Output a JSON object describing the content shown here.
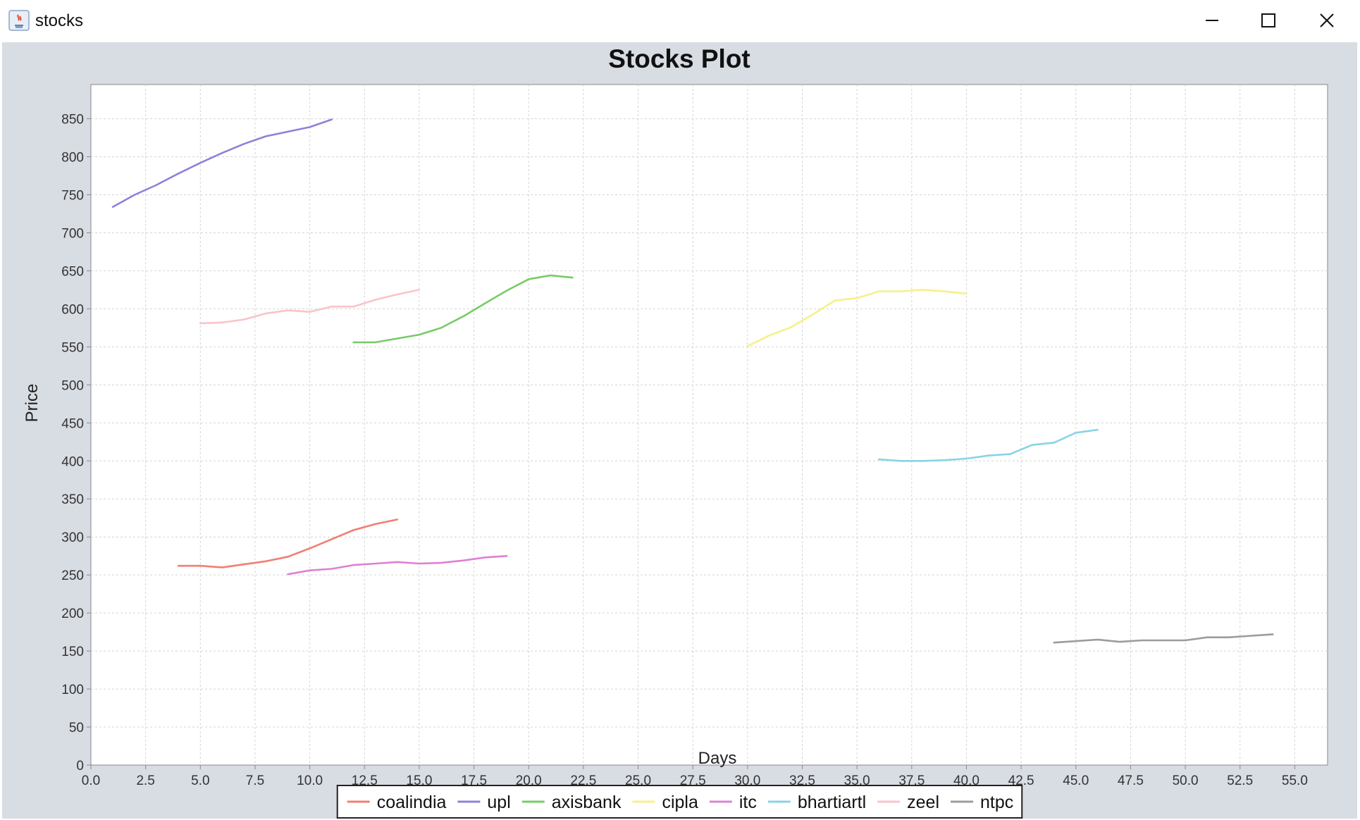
{
  "window": {
    "title": "stocks",
    "controls": [
      "minimize",
      "maximize",
      "close"
    ]
  },
  "chart_data": {
    "type": "line",
    "title": "Stocks Plot",
    "xlabel": "Days",
    "ylabel": "Price",
    "xlim": [
      0,
      56.5
    ],
    "ylim": [
      0,
      895
    ],
    "xticks": [
      "0.0",
      "2.5",
      "5.0",
      "7.5",
      "10.0",
      "12.5",
      "15.0",
      "17.5",
      "20.0",
      "22.5",
      "25.0",
      "27.5",
      "30.0",
      "32.5",
      "35.0",
      "37.5",
      "40.0",
      "42.5",
      "45.0",
      "47.5",
      "50.0",
      "52.5",
      "55.0"
    ],
    "yticks": [
      "0",
      "50",
      "100",
      "150",
      "200",
      "250",
      "300",
      "350",
      "400",
      "450",
      "500",
      "550",
      "600",
      "650",
      "700",
      "750",
      "800",
      "850"
    ],
    "grid": true,
    "legend_position": "bottom",
    "series": [
      {
        "name": "coalindia",
        "color": "#f07f73",
        "x": [
          4,
          5,
          6,
          7,
          8,
          9,
          10,
          11,
          12,
          13,
          14
        ],
        "y": [
          262,
          262,
          260,
          264,
          268,
          274,
          285,
          297,
          309,
          317,
          323
        ]
      },
      {
        "name": "upl",
        "color": "#8e81d9",
        "x": [
          1,
          2,
          3,
          4,
          5,
          6,
          7,
          8,
          9,
          10,
          11
        ],
        "y": [
          734,
          750,
          763,
          778,
          792,
          805,
          817,
          827,
          833,
          839,
          849
        ]
      },
      {
        "name": "axisbank",
        "color": "#77cc66",
        "x": [
          12,
          13,
          14,
          15,
          16,
          17,
          18,
          19,
          20,
          21,
          22
        ],
        "y": [
          556,
          556,
          561,
          566,
          575,
          590,
          607,
          624,
          639,
          644,
          641
        ]
      },
      {
        "name": "cipla",
        "color": "#f7f08a",
        "x": [
          30,
          31,
          32,
          33,
          34,
          35,
          36,
          37,
          38,
          39,
          40
        ],
        "y": [
          551,
          565,
          576,
          593,
          611,
          614,
          623,
          623,
          625,
          623,
          620
        ]
      },
      {
        "name": "itc",
        "color": "#de80d4",
        "x": [
          9,
          10,
          11,
          12,
          13,
          14,
          15,
          16,
          17,
          18,
          19
        ],
        "y": [
          251,
          256,
          258,
          263,
          265,
          267,
          265,
          266,
          269,
          273,
          275
        ]
      },
      {
        "name": "bhartiartl",
        "color": "#87d4e6",
        "x": [
          36,
          37,
          38,
          39,
          40,
          41,
          42,
          43,
          44,
          45,
          46
        ],
        "y": [
          402,
          400,
          400,
          401,
          403,
          407,
          409,
          421,
          424,
          437,
          441
        ]
      },
      {
        "name": "zeel",
        "color": "#fbc3c8",
        "x": [
          5,
          6,
          7,
          8,
          9,
          10,
          11,
          12,
          13,
          14,
          15
        ],
        "y": [
          581,
          582,
          586,
          594,
          598,
          596,
          603,
          603,
          612,
          619,
          625
        ]
      },
      {
        "name": "ntpc",
        "color": "#9c9c9c",
        "x": [
          44,
          45,
          46,
          47,
          48,
          49,
          50,
          51,
          52,
          53,
          54
        ],
        "y": [
          161,
          163,
          165,
          162,
          164,
          164,
          164,
          168,
          168,
          170,
          172
        ]
      }
    ]
  }
}
